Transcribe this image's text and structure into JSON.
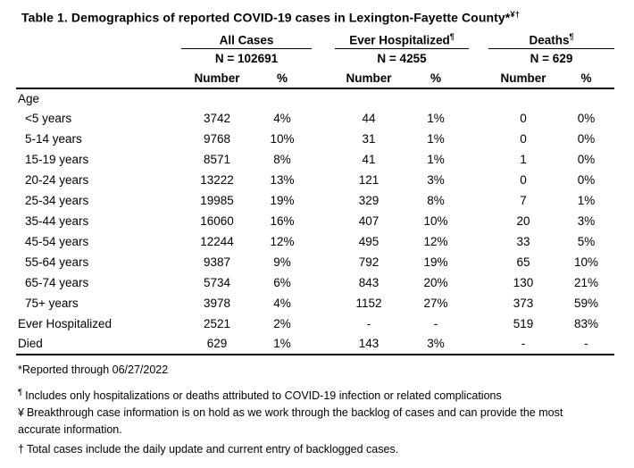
{
  "title": {
    "text": "Table 1. Demographics of reported COVID-19 cases in Lexington-Fayette County",
    "marker": "*",
    "superscript": "¥†"
  },
  "table": {
    "groups": [
      {
        "label": "All Cases",
        "sup": "",
        "n": "N = 102691"
      },
      {
        "label": "Ever Hospitalized",
        "sup": "¶",
        "n": "N = 4255"
      },
      {
        "label": "Deaths",
        "sup": "¶",
        "n": "N = 629"
      }
    ],
    "subheaders": {
      "number": "Number",
      "percent": "%"
    },
    "section": "Age",
    "rows": [
      {
        "label": "<5 years",
        "v": [
          "3742",
          "4%",
          "44",
          "1%",
          "0",
          "0%"
        ]
      },
      {
        "label": "5-14 years",
        "v": [
          "9768",
          "10%",
          "31",
          "1%",
          "0",
          "0%"
        ]
      },
      {
        "label": "15-19 years",
        "v": [
          "8571",
          "8%",
          "41",
          "1%",
          "1",
          "0%"
        ]
      },
      {
        "label": "20-24 years",
        "v": [
          "13222",
          "13%",
          "121",
          "3%",
          "0",
          "0%"
        ]
      },
      {
        "label": "25-34 years",
        "v": [
          "19985",
          "19%",
          "329",
          "8%",
          "7",
          "1%"
        ]
      },
      {
        "label": "35-44 years",
        "v": [
          "16060",
          "16%",
          "407",
          "10%",
          "20",
          "3%"
        ]
      },
      {
        "label": "45-54 years",
        "v": [
          "12244",
          "12%",
          "495",
          "12%",
          "33",
          "5%"
        ]
      },
      {
        "label": "55-64 years",
        "v": [
          "9387",
          "9%",
          "792",
          "19%",
          "65",
          "10%"
        ]
      },
      {
        "label": "65-74 years",
        "v": [
          "5734",
          "6%",
          "843",
          "20%",
          "130",
          "21%"
        ]
      },
      {
        "label": "75+ years",
        "v": [
          "3978",
          "4%",
          "1152",
          "27%",
          "373",
          "59%"
        ]
      },
      {
        "label": "Ever Hospitalized",
        "v": [
          "2521",
          "2%",
          "-",
          "-",
          "519",
          "83%"
        ]
      },
      {
        "label": "Died",
        "v": [
          "629",
          "1%",
          "143",
          "3%",
          "-",
          "-"
        ]
      }
    ]
  },
  "footnotes": [
    {
      "marker": "*",
      "text": "Reported through 06/27/2022"
    },
    {
      "marker": "¶",
      "text": "Includes only hospitalizations or deaths attributed to COVID-19 infection or related complications"
    },
    {
      "marker": "¥",
      "text": "Breakthrough case information is on hold as we work through the backlog of cases and can provide the most accurate information."
    },
    {
      "marker": "†",
      "text": "Total cases include the daily update and current entry of backlogged cases."
    }
  ],
  "colors": {
    "text": "#000000",
    "background": "#ffffff",
    "rule": "#000000"
  }
}
